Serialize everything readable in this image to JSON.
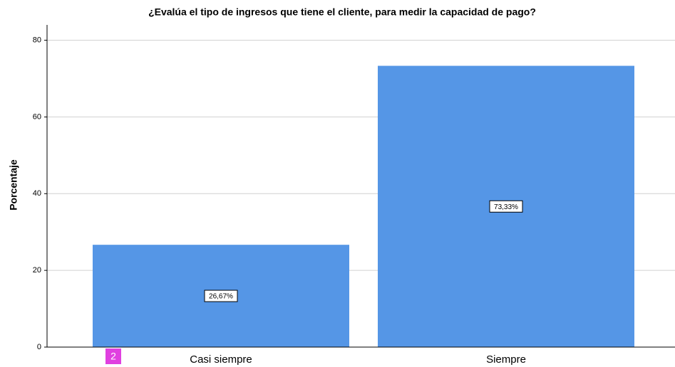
{
  "chart_data": {
    "type": "bar",
    "title": "¿Evalúa el tipo de ingresos que tiene el cliente, para medir la capacidad de pago?",
    "y_label": "Porcentaje",
    "categories": [
      "Casi siempre",
      "Siempre"
    ],
    "values": [
      26.67,
      73.33
    ],
    "value_labels": [
      "26,67%",
      "73,33%"
    ],
    "color": "#5596e6",
    "ylim": [
      0,
      84
    ],
    "yticks": [
      0,
      20,
      40,
      60,
      80
    ],
    "grid": true,
    "annotations": [
      "2"
    ]
  }
}
